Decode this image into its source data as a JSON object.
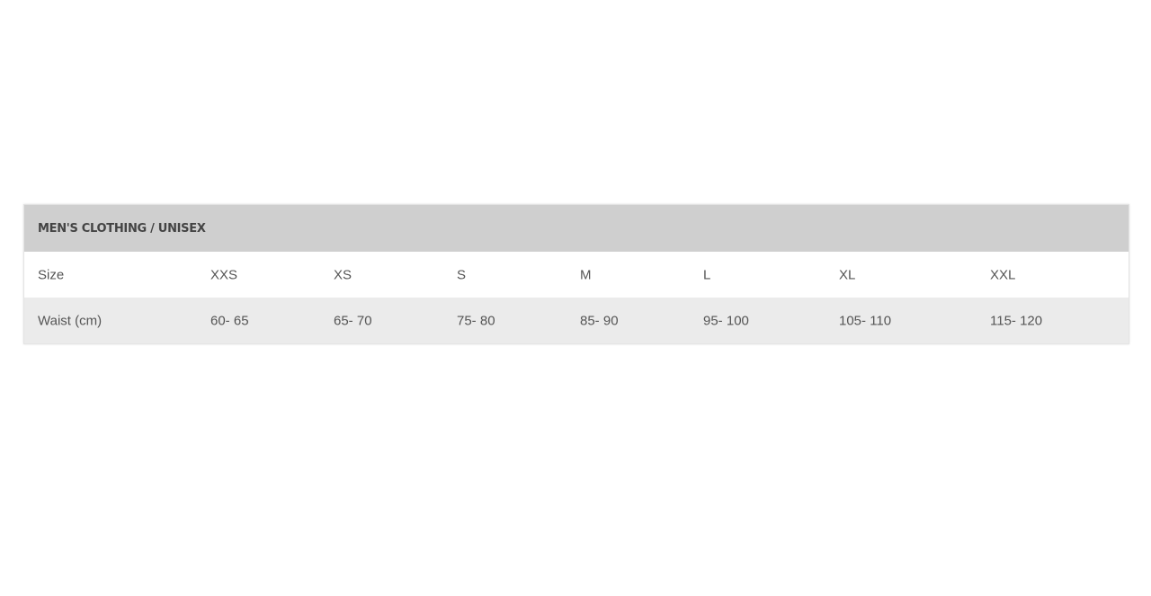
{
  "table": {
    "title": "MEN'S CLOTHING / UNISEX",
    "rows": [
      [
        "Size",
        "XXS",
        "XS",
        "S",
        "M",
        "L",
        "XL",
        "XXL"
      ],
      [
        "Waist (cm)",
        "60- 65",
        "65- 70",
        "75- 80",
        "85- 90",
        "95- 100",
        "105- 110",
        "115- 120"
      ]
    ]
  }
}
